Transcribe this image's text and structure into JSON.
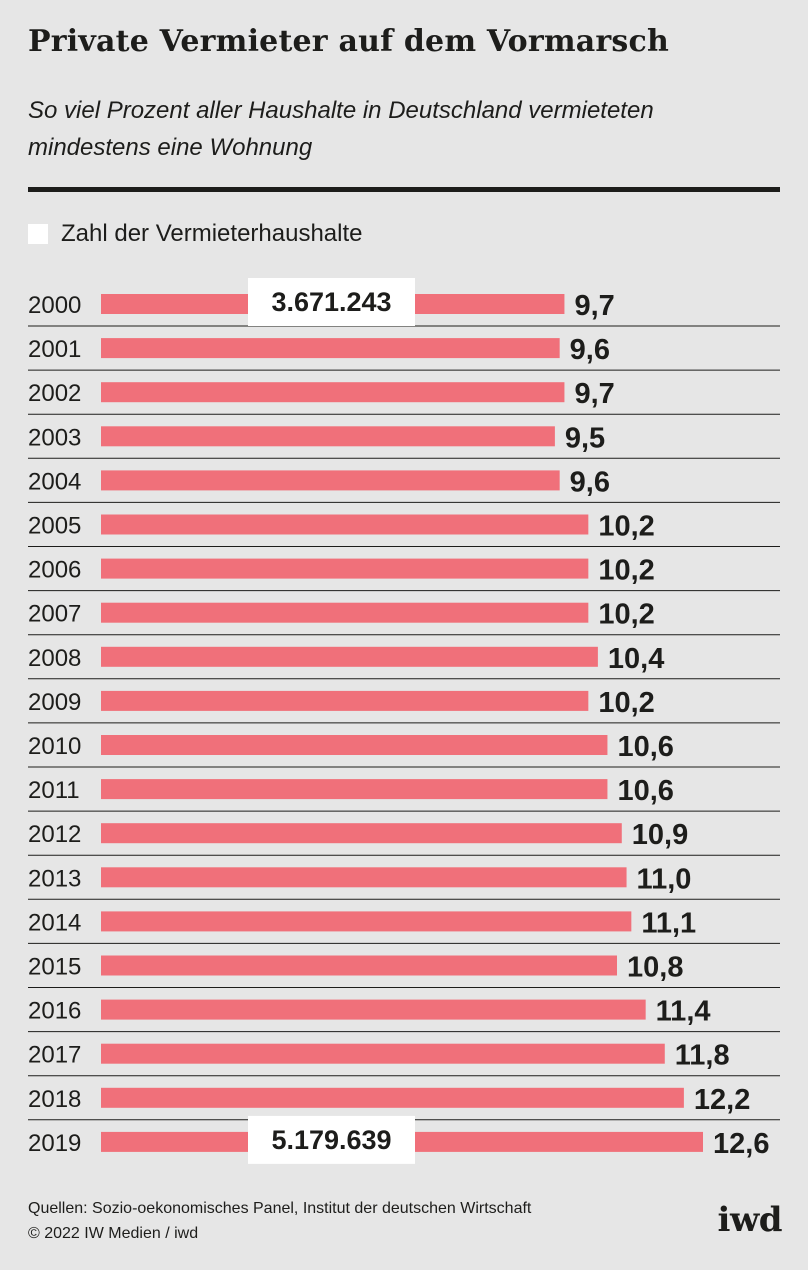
{
  "title": "Private Vermieter auf dem Vormarsch",
  "subtitle": "So viel Prozent aller Haushalte in Deutschland vermieteten mindestens eine Wohnung",
  "legend": {
    "label": "Zahl der Vermieterhaushalte",
    "color": "#ffffff"
  },
  "colors": {
    "bar": "#f0707a",
    "background": "#e6e6e6",
    "rule": "#1d1d1b"
  },
  "chart_data": {
    "type": "bar",
    "orientation": "horizontal",
    "categories": [
      "2000",
      "2001",
      "2002",
      "2003",
      "2004",
      "2005",
      "2006",
      "2007",
      "2008",
      "2009",
      "2010",
      "2011",
      "2012",
      "2013",
      "2014",
      "2015",
      "2016",
      "2017",
      "2018",
      "2019"
    ],
    "series": [
      {
        "values": [
          9.7,
          9.6,
          9.7,
          9.5,
          9.6,
          10.2,
          10.2,
          10.2,
          10.4,
          10.2,
          10.6,
          10.6,
          10.9,
          11.0,
          11.1,
          10.8,
          11.4,
          11.8,
          12.2,
          12.6
        ]
      }
    ],
    "value_labels": [
      "9,7",
      "9,6",
      "9,7",
      "9,5",
      "9,6",
      "10,2",
      "10,2",
      "10,2",
      "10,4",
      "10,2",
      "10,6",
      "10,6",
      "10,9",
      "11,0",
      "11,1",
      "10,8",
      "11,4",
      "11,8",
      "12,2",
      "12,6"
    ],
    "annotations": [
      {
        "category": "2000",
        "text": "3.671.243"
      },
      {
        "category": "2019",
        "text": "5.179.639"
      }
    ],
    "xlim": [
      0,
      12.6
    ],
    "grid": false,
    "legend_position": "top-left"
  },
  "footer": {
    "sources": "Quellen: Sozio-oekonomisches Panel, Institut der deutschen Wirtschaft",
    "copyright": "© 2022 IW Medien / iwd"
  },
  "logo": "iwd"
}
